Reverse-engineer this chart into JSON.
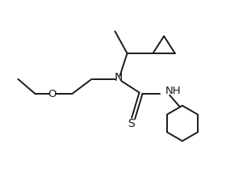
{
  "background_color": "#ffffff",
  "line_color": "#1a1a1a",
  "line_width": 1.4,
  "figsize": [
    3.06,
    2.14
  ],
  "dpi": 100,
  "xlim": [
    0,
    10
  ],
  "ylim": [
    0,
    7
  ]
}
